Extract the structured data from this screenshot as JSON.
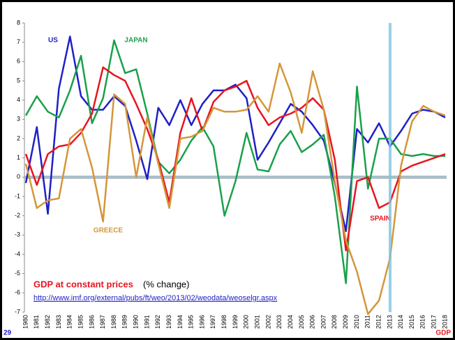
{
  "chart_data": {
    "type": "line",
    "title": "GDP at constant prices",
    "title_suffix": "(% change)",
    "source": "http://www.imf.org/external/pubs/ft/weo/2013/02/weodata/weoselgr.aspx",
    "page_number": "29",
    "footer": "GDP",
    "categories": [
      "1980",
      "1981",
      "1982",
      "1983",
      "1984",
      "1985",
      "1986",
      "1987",
      "1988",
      "1989",
      "1990",
      "1991",
      "1992",
      "1993",
      "1994",
      "1995",
      "1996",
      "1997",
      "1998",
      "1999",
      "2000",
      "2001",
      "2002",
      "2003",
      "2004",
      "2005",
      "2006",
      "2007",
      "2008",
      "2009",
      "2010",
      "2011",
      "2012",
      "2013",
      "2014",
      "2015",
      "2016",
      "2017",
      "2018"
    ],
    "ylim": [
      -7,
      8
    ],
    "yticks": [
      -7,
      -6,
      -5,
      -4,
      -3,
      -2,
      -1,
      0,
      1,
      2,
      3,
      4,
      5,
      6,
      7,
      8
    ],
    "grid": false,
    "series": [
      {
        "name": "US",
        "color": "#1f1fc8",
        "values": [
          -0.3,
          2.6,
          -1.9,
          4.6,
          7.3,
          4.2,
          3.5,
          3.5,
          4.2,
          3.7,
          1.9,
          -0.1,
          3.6,
          2.7,
          4.0,
          2.7,
          3.8,
          4.5,
          4.5,
          4.8,
          4.1,
          0.9,
          1.8,
          2.8,
          3.8,
          3.4,
          2.7,
          1.9,
          -0.3,
          -2.8,
          2.5,
          1.8,
          2.8,
          1.6,
          2.4,
          3.3,
          3.5,
          3.4,
          3.1
        ]
      },
      {
        "name": "JAPAN",
        "color": "#1aa04a",
        "values": [
          3.2,
          4.2,
          3.4,
          3.1,
          4.5,
          6.3,
          2.8,
          4.1,
          7.1,
          5.4,
          5.6,
          3.3,
          0.8,
          0.2,
          0.9,
          1.9,
          2.6,
          1.6,
          -2.0,
          -0.2,
          2.3,
          0.4,
          0.3,
          1.7,
          2.4,
          1.3,
          1.7,
          2.2,
          -1.0,
          -5.5,
          4.7,
          -0.6,
          2.0,
          2.0,
          1.2,
          1.1,
          1.2,
          1.1,
          1.1
        ]
      },
      {
        "name": "SPAIN",
        "color": "#e8141e",
        "values": [
          1.2,
          -0.4,
          1.2,
          1.6,
          1.7,
          2.3,
          3.3,
          5.7,
          5.3,
          5.0,
          3.8,
          2.5,
          0.9,
          -1.3,
          2.3,
          4.1,
          2.4,
          3.9,
          4.5,
          4.7,
          5.0,
          3.6,
          2.7,
          3.1,
          3.3,
          3.6,
          4.1,
          3.5,
          0.9,
          -3.8,
          -0.2,
          0.0,
          -1.6,
          -1.3,
          0.3,
          0.6,
          0.8,
          1.0,
          1.2
        ]
      },
      {
        "name": "GREECE",
        "color": "#d4963a",
        "values": [
          0.7,
          -1.6,
          -1.2,
          -1.1,
          2.0,
          2.5,
          0.5,
          -2.3,
          4.3,
          3.8,
          0.0,
          3.1,
          0.7,
          -1.6,
          2.0,
          2.1,
          2.4,
          3.6,
          3.4,
          3.4,
          3.5,
          4.2,
          3.4,
          5.9,
          4.4,
          2.3,
          5.5,
          3.5,
          -0.2,
          -3.3,
          -4.9,
          -7.1,
          -6.4,
          -4.2,
          0.6,
          2.9,
          3.7,
          3.4,
          3.2
        ]
      }
    ]
  }
}
